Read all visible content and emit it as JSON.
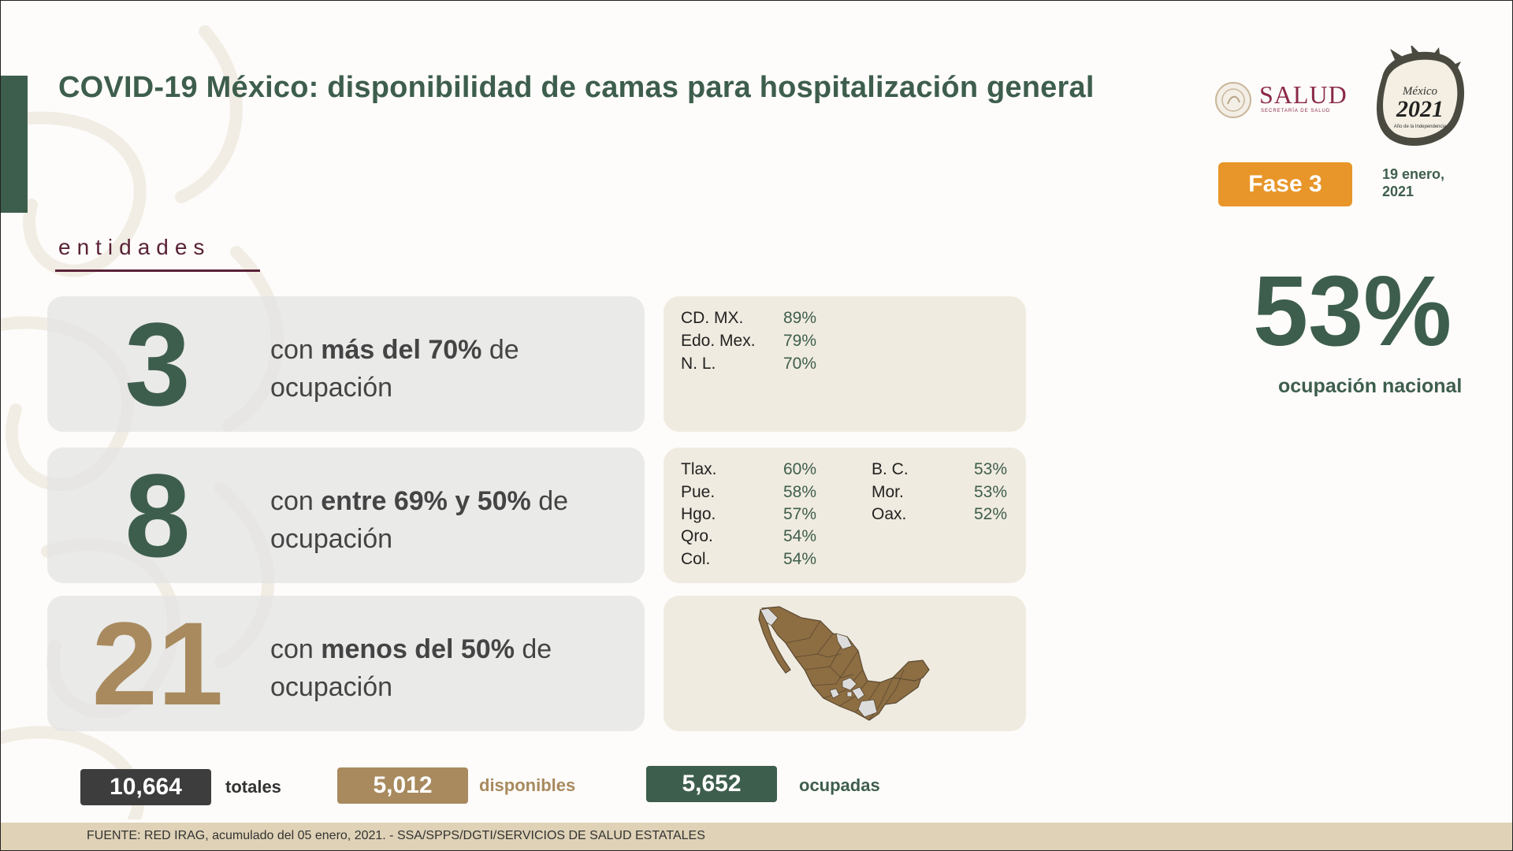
{
  "title": "COVID-19 México: disponibilidad de camas para hospitalización general",
  "logos": {
    "salud_word": "SALUD",
    "salud_sub": "SECRETARÍA DE SALUD",
    "emblem_top": "México",
    "emblem_year": "2021",
    "emblem_sub": "Año de la Independencia"
  },
  "phase": "Fase 3",
  "date": "19 enero,\n2021",
  "national": {
    "value": "53%",
    "label": "ocupación nacional"
  },
  "section_label": "entidades",
  "rows": [
    {
      "count": "3",
      "text_pre": "con ",
      "text_bold": "más del 70%",
      "text_post": " de ocupación",
      "entries": [
        {
          "name": "CD. MX.",
          "value": "89%"
        },
        {
          "name": "Edo. Mex.",
          "value": "79%"
        },
        {
          "name": "N. L.",
          "value": "70%"
        }
      ]
    },
    {
      "count": "8",
      "text_pre": "con ",
      "text_bold": "entre 69% y 50%",
      "text_post": " de ocupación",
      "entries": [
        {
          "name": "Tlax.",
          "value": "60%"
        },
        {
          "name": "Pue.",
          "value": "58%"
        },
        {
          "name": "Hgo.",
          "value": "57%"
        },
        {
          "name": "Qro.",
          "value": "54%"
        },
        {
          "name": "Col.",
          "value": "54%"
        },
        {
          "name": "B. C.",
          "value": "53%"
        },
        {
          "name": "Mor.",
          "value": "53%"
        },
        {
          "name": "Oax.",
          "value": "52%"
        }
      ]
    },
    {
      "count": "21",
      "text_pre": "con ",
      "text_bold": "menos del 50%",
      "text_post": " de ocupación"
    }
  ],
  "colors": {
    "green": "#3e5e4d",
    "gold": "#a88a5e",
    "orange": "#e8962a",
    "maroon": "#5a2237",
    "dark": "#3d3d3d"
  },
  "totals": [
    {
      "value": "10,664",
      "label": "totales"
    },
    {
      "value": "5,012",
      "label": "disponibles"
    },
    {
      "value": "5,652",
      "label": "ocupadas"
    }
  ],
  "footer": "FUENTE: RED IRAG, acumulado del 05 enero, 2021. -  SSA/SPPS/DGTI/SERVICIOS DE SALUD ESTATALES"
}
